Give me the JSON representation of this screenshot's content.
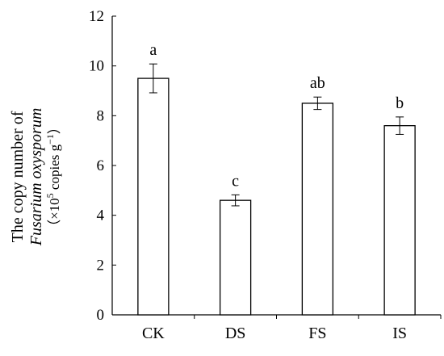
{
  "chart_data": {
    "type": "bar",
    "categories": [
      "CK",
      "DS",
      "FS",
      "IS"
    ],
    "values": [
      9.5,
      4.6,
      8.5,
      7.6
    ],
    "errors": [
      0.58,
      0.22,
      0.25,
      0.35
    ],
    "significance": [
      "a",
      "c",
      "ab",
      "b"
    ],
    "title": "",
    "xlabel": "",
    "ylabel": {
      "line1": "The copy number of",
      "line2": "Fusarium oxysporum",
      "line3_open": "（×10",
      "line3_exp": "5",
      "line3_unit": " copies g",
      "line3_unit_exp": "−1",
      "line3_close": "）"
    },
    "ylim": [
      0,
      12
    ],
    "yticks": [
      0,
      2,
      4,
      6,
      8,
      10,
      12
    ],
    "grid": false,
    "legend": "none",
    "bar_fill": "#ffffff",
    "bar_stroke": "#000000"
  }
}
